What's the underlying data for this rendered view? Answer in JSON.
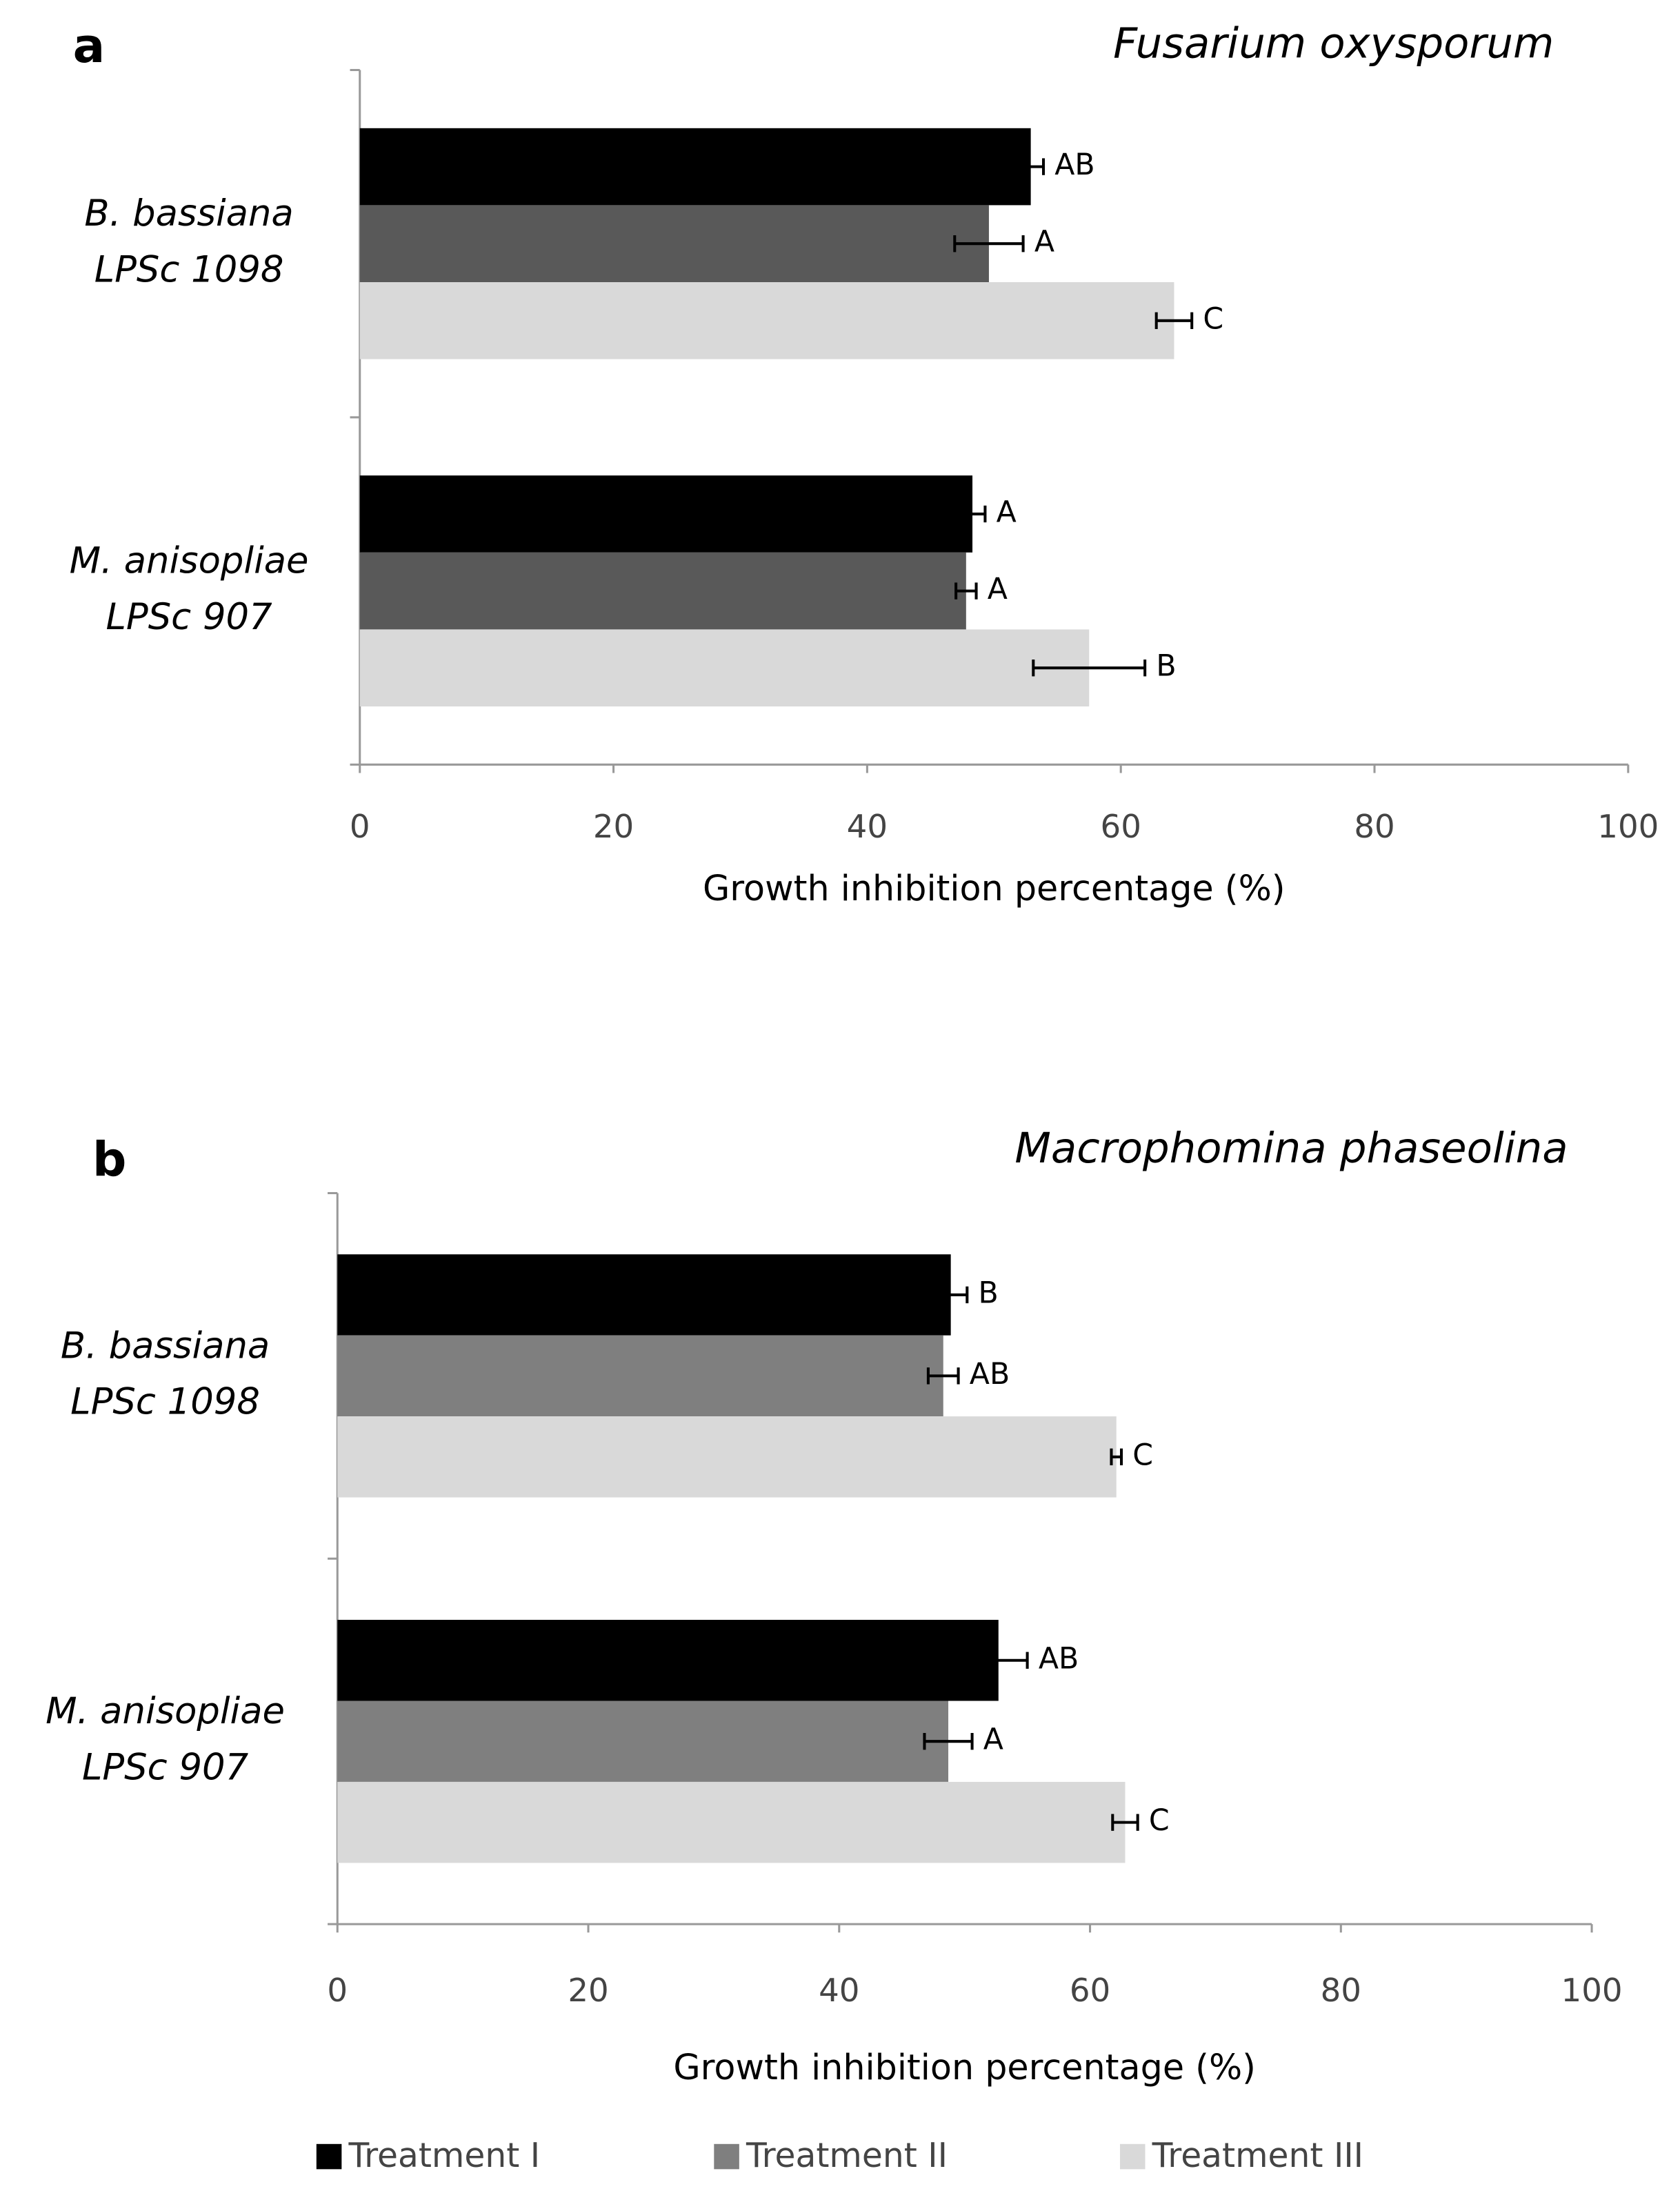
{
  "chart_data": [
    {
      "type": "bar",
      "orientation": "horizontal",
      "panel": "a",
      "title": "Fusarium oxysporum",
      "xlabel": "Growth inhibition percentage (%)",
      "categories": [
        [
          "B. bassiana",
          "LPSc 1098"
        ],
        [
          "M. anisopliae",
          "LPSc 907"
        ]
      ],
      "series": [
        {
          "color": "#000000",
          "values": [
            52.9,
            48.3
          ],
          "errors": [
            1.0,
            1.0
          ],
          "letters": [
            "AB",
            "A"
          ]
        },
        {
          "color": "#595959",
          "values": [
            49.6,
            47.8
          ],
          "errors": [
            2.7,
            0.8
          ],
          "letters": [
            "A",
            "A"
          ]
        },
        {
          "color": "#d9d9d9",
          "values": [
            64.2,
            57.5
          ],
          "errors": [
            1.4,
            4.4
          ],
          "letters": [
            "C",
            "B"
          ]
        }
      ],
      "xlim": [
        0,
        100
      ],
      "xticks": [
        0,
        20,
        40,
        60,
        80,
        100
      ]
    },
    {
      "type": "bar",
      "orientation": "horizontal",
      "panel": "b",
      "title": "Macrophomina phaseolina",
      "xlabel": "Growth inhibition percentage (%)",
      "categories": [
        [
          "B. bassiana",
          "LPSc 1098"
        ],
        [
          "M. anisopliae",
          "LPSc 907"
        ]
      ],
      "series": [
        {
          "name": "Treatment I",
          "color": "#000000",
          "values": [
            48.9,
            52.7
          ],
          "errors": [
            1.3,
            2.3
          ],
          "letters": [
            "B",
            "AB"
          ]
        },
        {
          "name": "Treatment II",
          "color": "#7f7f7f",
          "values": [
            48.3,
            48.7
          ],
          "errors": [
            1.2,
            1.9
          ],
          "letters": [
            "AB",
            "A"
          ]
        },
        {
          "name": "Treatment III",
          "color": "#d9d9d9",
          "values": [
            62.1,
            62.8
          ],
          "errors": [
            0.4,
            1.0
          ],
          "letters": [
            "C",
            "C"
          ]
        }
      ],
      "xlim": [
        0,
        100
      ],
      "xticks": [
        0,
        20,
        40,
        60,
        80,
        100
      ],
      "legend": "bottom"
    }
  ]
}
